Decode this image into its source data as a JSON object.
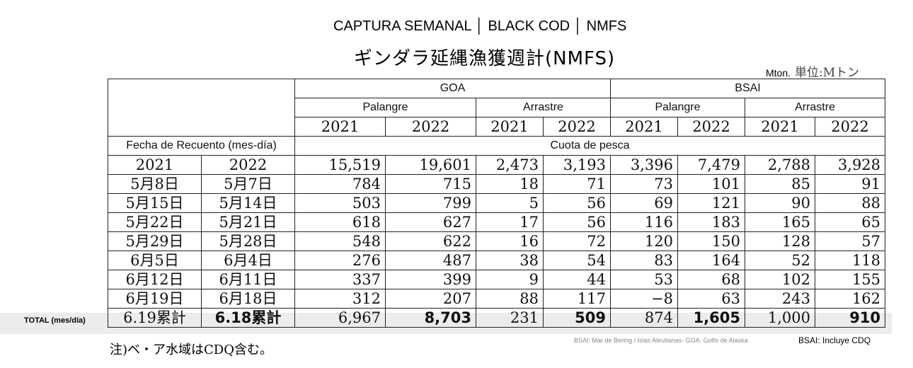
{
  "header": {
    "title": "CAPTURA SEMANAL │ BLACK COD │ NMFS"
  },
  "jp_title": "ギンダラ延縄漁獲週計(NMFS)",
  "unit": {
    "label": "Mton.",
    "jp_label": "単位:Mトン"
  },
  "table": {
    "regions": [
      "GOA",
      "BSAI"
    ],
    "gears": [
      "Palangre",
      "Arrastre",
      "Palangre",
      "Arrastre"
    ],
    "years": [
      "2021",
      "2022",
      "2021",
      "2022",
      "2021",
      "2022",
      "2021",
      "2022"
    ],
    "date_header": "Fecha de Recuento (mes-día)",
    "quota_header": "Cuota de pesca",
    "date_years": [
      "2021",
      "2022"
    ],
    "quota": [
      "15,519",
      "19,601",
      "2,473",
      "3,193",
      "3,396",
      "7,479",
      "2,788",
      "3,928"
    ],
    "rows": [
      {
        "d2021": "5月8日",
        "d2022": "5月7日",
        "values": [
          "784",
          "715",
          "18",
          "71",
          "73",
          "101",
          "85",
          "91"
        ]
      },
      {
        "d2021": "5月15日",
        "d2022": "5月14日",
        "values": [
          "503",
          "799",
          "5",
          "56",
          "69",
          "121",
          "90",
          "88"
        ]
      },
      {
        "d2021": "5月22日",
        "d2022": "5月21日",
        "values": [
          "618",
          "627",
          "17",
          "56",
          "116",
          "183",
          "165",
          "65"
        ]
      },
      {
        "d2021": "5月29日",
        "d2022": "5月28日",
        "values": [
          "548",
          "622",
          "16",
          "72",
          "120",
          "150",
          "128",
          "57"
        ]
      },
      {
        "d2021": "6月5日",
        "d2022": "6月4日",
        "values": [
          "276",
          "487",
          "38",
          "54",
          "83",
          "164",
          "52",
          "118"
        ]
      },
      {
        "d2021": "6月12日",
        "d2022": "6月11日",
        "values": [
          "337",
          "399",
          "9",
          "44",
          "53",
          "68",
          "102",
          "155"
        ]
      },
      {
        "d2021": "6月19日",
        "d2022": "6月18日",
        "values": [
          "312",
          "207",
          "88",
          "117",
          "−8",
          "63",
          "243",
          "162"
        ]
      }
    ],
    "total": {
      "label": "TOTAL (mes/día)",
      "d2021": "6.19累計",
      "d2022": "6.18累計",
      "values": [
        "6,967",
        "8,703",
        "231",
        "509",
        "874",
        "1,605",
        "1,000",
        "910"
      ]
    }
  },
  "footer": {
    "note": "注)ベ・ア水域はCDQ含む。",
    "source": "BSAI: Mar de Bering / Islas Aleutianas- GOA: Golfo de Alaska",
    "bsai_note": "BSAI: Incluye CDQ"
  }
}
